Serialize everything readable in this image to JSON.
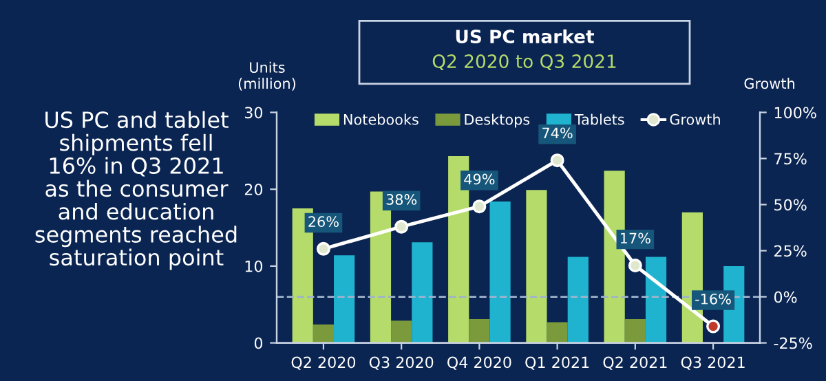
{
  "chart_data": {
    "type": "bar",
    "title": "US PC market",
    "subtitle": "Q2 2020 to Q3 2021",
    "ylabel": "Units\n(million)",
    "y2label": "Growth",
    "annotations": [
      "US PC and tablet\nshipments fell\n16% in Q3 2021\nas the consumer\nand education\nsegments reached\nsaturation point"
    ],
    "categories": [
      "Q2 2020",
      "Q3 2020",
      "Q4 2020",
      "Q1 2021",
      "Q2 2021",
      "Q3 2021"
    ],
    "series": [
      {
        "name": "Notebooks",
        "color": "#b5dc6a",
        "values": [
          17.5,
          19.7,
          24.3,
          19.9,
          22.4,
          17.0
        ]
      },
      {
        "name": "Desktops",
        "color": "#7a9a3c",
        "values": [
          2.4,
          2.9,
          3.1,
          2.7,
          3.1,
          null
        ]
      },
      {
        "name": "Tablets",
        "color": "#1fb3cf",
        "values": [
          11.4,
          13.1,
          18.4,
          11.2,
          11.2,
          10.0
        ]
      },
      {
        "name": "Growth",
        "type": "line",
        "axis": "y2",
        "color": "#ffffff",
        "colors": [
          "#dfe8cf",
          "#dfe8cf",
          "#dfe8cf",
          "#dfe8cf",
          "#dfe8cf",
          "#c0392b"
        ],
        "values": [
          26,
          38,
          49,
          74,
          17,
          -16
        ],
        "value_labels": [
          "26%",
          "38%",
          "49%",
          "74%",
          "17%",
          "-16%"
        ]
      }
    ],
    "ylim": [
      0,
      30
    ],
    "yticks": [
      0,
      10,
      20,
      30
    ],
    "y2lim": [
      -25,
      100
    ],
    "y2ticks": [
      {
        "value": -25,
        "label": "-25%"
      },
      {
        "value": 0,
        "label": "0%"
      },
      {
        "value": 25,
        "label": "25%"
      },
      {
        "value": 50,
        "label": "50%"
      },
      {
        "value": 75,
        "label": "75%"
      },
      {
        "value": 100,
        "label": "100%"
      }
    ],
    "ref_lines": [
      {
        "axis": "y2",
        "value": 0,
        "color": "#9fb3cc",
        "line_style": "dashed"
      }
    ],
    "marker": "circle",
    "line_style": "solid",
    "legend": "top",
    "grid": false
  }
}
